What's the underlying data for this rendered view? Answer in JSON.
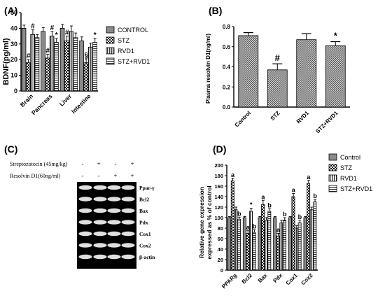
{
  "panels": [
    {
      "label": "(A)",
      "chart_data": {
        "type": "bar",
        "ylabel": "BDNF(pg/ml)",
        "ylim": [
          0,
          50
        ],
        "yticks": [
          0,
          10,
          20,
          30,
          40,
          50
        ],
        "categories": [
          "Brain",
          "Pancreas",
          "Liver",
          "Intestine"
        ],
        "series": [
          {
            "name": "CONTROL",
            "values": [
              40,
              38,
              40,
              32
            ],
            "errors": [
              2,
              2.5,
              2.5,
              2.5
            ]
          },
          {
            "name": "STZ",
            "values": [
              18,
              21,
              32,
              18
            ],
            "errors": [
              2,
              2.5,
              3,
              2.5
            ]
          },
          {
            "name": "RVD1",
            "values": [
              36,
              35,
              38,
              28
            ],
            "errors": [
              3,
              3,
              3.5,
              2.5
            ]
          },
          {
            "name": "STZ+RVD1",
            "values": [
              34,
              31,
              34,
              31
            ],
            "errors": [
              2,
              2.5,
              3,
              2.5
            ]
          }
        ],
        "annotations": [
          {
            "category": "Brain",
            "series": "STZ",
            "text": "#"
          },
          {
            "category": "Brain",
            "series": "RVD1",
            "text": "#"
          },
          {
            "category": "Pancreas",
            "series": "STZ",
            "text": "#"
          },
          {
            "category": "Pancreas",
            "series": "RVD1",
            "text": "#"
          },
          {
            "category": "Pancreas",
            "series": "STZ+RVD1",
            "text": "*"
          },
          {
            "category": "Liver",
            "series": "STZ",
            "text": "#"
          },
          {
            "category": "Intestine",
            "series": "STZ",
            "text": "§"
          },
          {
            "category": "Intestine",
            "series": "STZ+RVD1",
            "text": "*"
          }
        ],
        "legend": "right"
      }
    },
    {
      "label": "(B)",
      "chart_data": {
        "type": "bar",
        "ylabel": "Plasma resolvin D1(ng/ml)",
        "ylim": [
          0,
          0.8
        ],
        "yticks": [
          "0.0",
          "0.2",
          "0.4",
          "0.6",
          "0.8"
        ],
        "categories": [
          "Control",
          "STZ",
          "RVD1",
          "STZ+RVD1"
        ],
        "values": [
          0.71,
          0.37,
          0.67,
          0.61
        ],
        "errors": [
          0.03,
          0.06,
          0.06,
          0.04
        ],
        "annotations": [
          {
            "category": "STZ",
            "text": "#"
          },
          {
            "category": "STZ+RVD1",
            "text": "*"
          }
        ]
      }
    },
    {
      "label": "(C)",
      "rows": [
        {
          "label": "Streptozotocin (45mg/kg)",
          "marks": [
            "-",
            "+",
            "-",
            "+"
          ]
        },
        {
          "label": "Resolvin D1(60ng/ml)",
          "marks": [
            "-",
            "-",
            "+",
            "+"
          ]
        }
      ],
      "bands": [
        "Ppar-γ",
        "Bcl2",
        "Bax",
        "Pdx",
        "Cox1",
        "Cox2",
        "β-actin"
      ]
    },
    {
      "label": "(D)",
      "chart_data": {
        "type": "bar",
        "ylabel": "Relative gene expression expressed as % of control",
        "ylabel_lines": [
          "Relative gene expression",
          "expressed as % of control"
        ],
        "ylim": [
          0,
          200
        ],
        "yticks": [
          0,
          20,
          40,
          60,
          80,
          100,
          120,
          140,
          160,
          180,
          200
        ],
        "categories": [
          "PPARg",
          "Bcl2",
          "Bax",
          "Pdx",
          "Cox1",
          "Cox2"
        ],
        "series": [
          {
            "name": "Control",
            "values": [
              100,
              100,
              100,
              100,
              100,
              100
            ],
            "errors": [
              2,
              2,
              2,
              2,
              2,
              2
            ]
          },
          {
            "name": "STZ",
            "values": [
              170,
              70,
              125,
              65,
              140,
              165
            ],
            "errors": [
              5,
              5,
              8,
              5,
              6,
              6
            ]
          },
          {
            "name": "RVD1",
            "values": [
              115,
              112,
              95,
              90,
              80,
              115
            ],
            "errors": [
              5,
              6,
              5,
              5,
              5,
              5
            ]
          },
          {
            "name": "STZ+RVD1",
            "values": [
              97,
              72,
              112,
              95,
              90,
              130
            ],
            "errors": [
              4,
              5,
              5,
              5,
              5,
              5
            ]
          }
        ],
        "annotations": [
          {
            "category": "PPARg",
            "series": "STZ",
            "text": "a"
          },
          {
            "category": "PPARg",
            "series": "STZ+RVD1",
            "text": "b"
          },
          {
            "category": "Bcl2",
            "series": "STZ",
            "text": "a"
          },
          {
            "category": "Bcl2",
            "series": "RVD1",
            "text": "*"
          },
          {
            "category": "Bcl2",
            "series": "STZ+RVD1",
            "text": "b"
          },
          {
            "category": "Bax",
            "series": "STZ",
            "text": "a"
          },
          {
            "category": "Bax",
            "series": "STZ+RVD1",
            "text": "b"
          },
          {
            "category": "Pdx",
            "series": "STZ",
            "text": "a"
          },
          {
            "category": "Pdx",
            "series": "STZ+RVD1",
            "text": "b"
          },
          {
            "category": "Cox1",
            "series": "STZ",
            "text": "a"
          },
          {
            "category": "Cox1",
            "series": "STZ+RVD1",
            "text": "b"
          },
          {
            "category": "Cox2",
            "series": "STZ",
            "text": "a"
          },
          {
            "category": "Cox2",
            "series": "STZ+RVD1",
            "text": "b"
          }
        ],
        "legend": "right"
      }
    }
  ],
  "styles": {
    "bar_fill": [
      "#8a8a8a",
      "#ffffff",
      "#c4c4c4",
      "#e6e6e6"
    ],
    "ink": "#000000",
    "blot_bg": "#000000",
    "band_color": "#ffffff"
  }
}
